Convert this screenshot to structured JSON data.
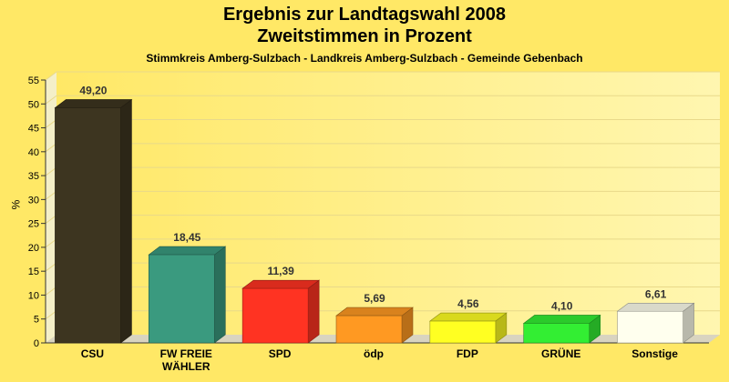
{
  "title": "Ergebnis zur Landtagswahl 2008",
  "subtitle": "Zweitstimmen in Prozent",
  "caption": "Stimmkreis Amberg-Sulzbach - Landkreis Amberg-Sulzbach - Gemeinde Gebenbach",
  "chart_data": {
    "type": "bar",
    "categories": [
      "CSU",
      "FW FREIE WÄHLER",
      "SPD",
      "ödp",
      "FDP",
      "GRÜNE",
      "Sonstige"
    ],
    "category_lines": [
      [
        "CSU"
      ],
      [
        "FW FREIE",
        "WÄHLER"
      ],
      [
        "SPD"
      ],
      [
        "ödp"
      ],
      [
        "FDP"
      ],
      [
        "GRÜNE"
      ],
      [
        "Sonstige"
      ]
    ],
    "values": [
      49.2,
      18.45,
      11.39,
      5.69,
      4.56,
      4.1,
      6.61
    ],
    "value_labels": [
      "49,20",
      "18,45",
      "11,39",
      "5,69",
      "4,56",
      "4,10",
      "6,61"
    ],
    "colors": [
      "#3D3520",
      "#3A9A7F",
      "#FF3322",
      "#FF9922",
      "#FFFF22",
      "#33EE33",
      "#FFFFEE"
    ],
    "ylabel": "%",
    "ylim": [
      0,
      55
    ],
    "yticks": [
      0,
      5,
      10,
      15,
      20,
      25,
      30,
      35,
      40,
      45,
      50,
      55
    ],
    "grid": true
  }
}
